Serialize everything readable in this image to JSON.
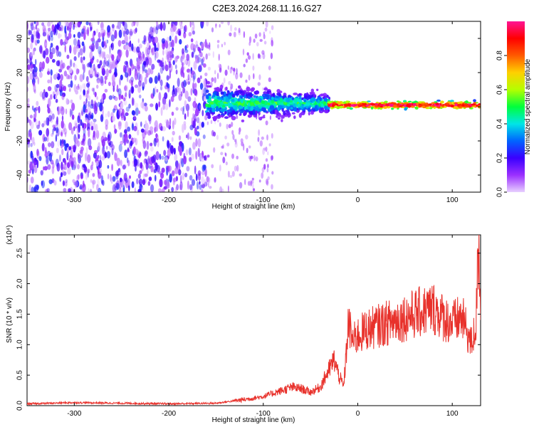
{
  "title": "C2E3.2024.268.11.16.G27",
  "colors": {
    "snr_line": "#e8312b",
    "axis": "#000000",
    "spectrogram_background_low": "#7a2ee8",
    "colorbar_stops": [
      "#e8d0ff",
      "#9b30ff",
      "#3a00ff",
      "#0064ff",
      "#00e6e6",
      "#00ff3c",
      "#b4ff00",
      "#ffd000",
      "#ff5a00",
      "#ff0000",
      "#ff1493"
    ]
  },
  "chart_data": [
    {
      "type": "heatmap",
      "name": "spectrogram",
      "title": "C2E3.2024.268.11.16.G27",
      "xlabel": "Height of straight line (km)",
      "ylabel": "Frequency (Hz)",
      "xlim": [
        -350,
        130
      ],
      "ylim": [
        -50,
        50
      ],
      "x_ticks": [
        -300,
        -200,
        -100,
        0,
        100
      ],
      "x_tick_labels": [
        "-300",
        "-200",
        "-100",
        "0",
        "100"
      ],
      "y_ticks": [
        -40,
        -20,
        0,
        20,
        40
      ],
      "y_tick_labels": [
        "-40",
        "-20",
        "0",
        "20",
        "40"
      ],
      "colorbar": {
        "label": "Normalized spectral amplitude",
        "range": [
          0,
          1
        ],
        "ticks": [
          0.0,
          0.2,
          0.4,
          0.6,
          0.8
        ],
        "tick_labels": [
          "0.0",
          "0.2",
          "0.4",
          "0.6",
          "0.8"
        ]
      },
      "regions": [
        {
          "x_range": [
            -350,
            -160
          ],
          "frequency_range": [
            -50,
            50
          ],
          "amplitude_range": [
            0.0,
            0.25
          ],
          "description": "broadband noise"
        },
        {
          "x_range": [
            -160,
            -30
          ],
          "center_frequency": 2,
          "spread_hz": 8,
          "amplitude_range": [
            0.2,
            0.5
          ]
        },
        {
          "x_range": [
            -30,
            130
          ],
          "center_frequency": 1,
          "spread_hz": 2,
          "amplitude_range": [
            0.6,
            1.0
          ]
        }
      ]
    },
    {
      "type": "line",
      "name": "snr",
      "xlabel": "Height of straight line (km)",
      "ylabel": "SNR (10 * v/v)",
      "y_multiplier_label": "(x10⁴)",
      "xlim": [
        -350,
        130
      ],
      "ylim": [
        0,
        2.8
      ],
      "x_ticks": [
        -300,
        -200,
        -100,
        0,
        100
      ],
      "x_tick_labels": [
        "-300",
        "-200",
        "-100",
        "0",
        "100"
      ],
      "y_ticks": [
        0.0,
        0.5,
        1.0,
        1.5,
        2.0,
        2.5
      ],
      "y_tick_labels": [
        "0.0",
        "0.5",
        "1.0",
        "1.5",
        "2.0",
        "2.5"
      ],
      "series": [
        {
          "x": [
            -350,
            -300,
            -250,
            -200,
            -150,
            -120,
            -100,
            -90,
            -80,
            -70,
            -60,
            -50,
            -40,
            -35,
            -30,
            -25,
            -20,
            -15,
            -12,
            -10,
            -5,
            0,
            10,
            20,
            30,
            40,
            50,
            60,
            70,
            80,
            90,
            100,
            110,
            115,
            120,
            125,
            128,
            130
          ],
          "y": [
            0.03,
            0.05,
            0.04,
            0.03,
            0.04,
            0.1,
            0.15,
            0.2,
            0.25,
            0.3,
            0.28,
            0.22,
            0.3,
            0.45,
            0.6,
            0.75,
            0.5,
            0.3,
            0.9,
            1.35,
            1.05,
            1.15,
            1.25,
            1.3,
            1.35,
            1.4,
            1.45,
            1.5,
            1.55,
            1.6,
            1.45,
            1.35,
            1.45,
            1.25,
            1.0,
            1.3,
            2.7,
            1.8
          ]
        }
      ]
    }
  ]
}
